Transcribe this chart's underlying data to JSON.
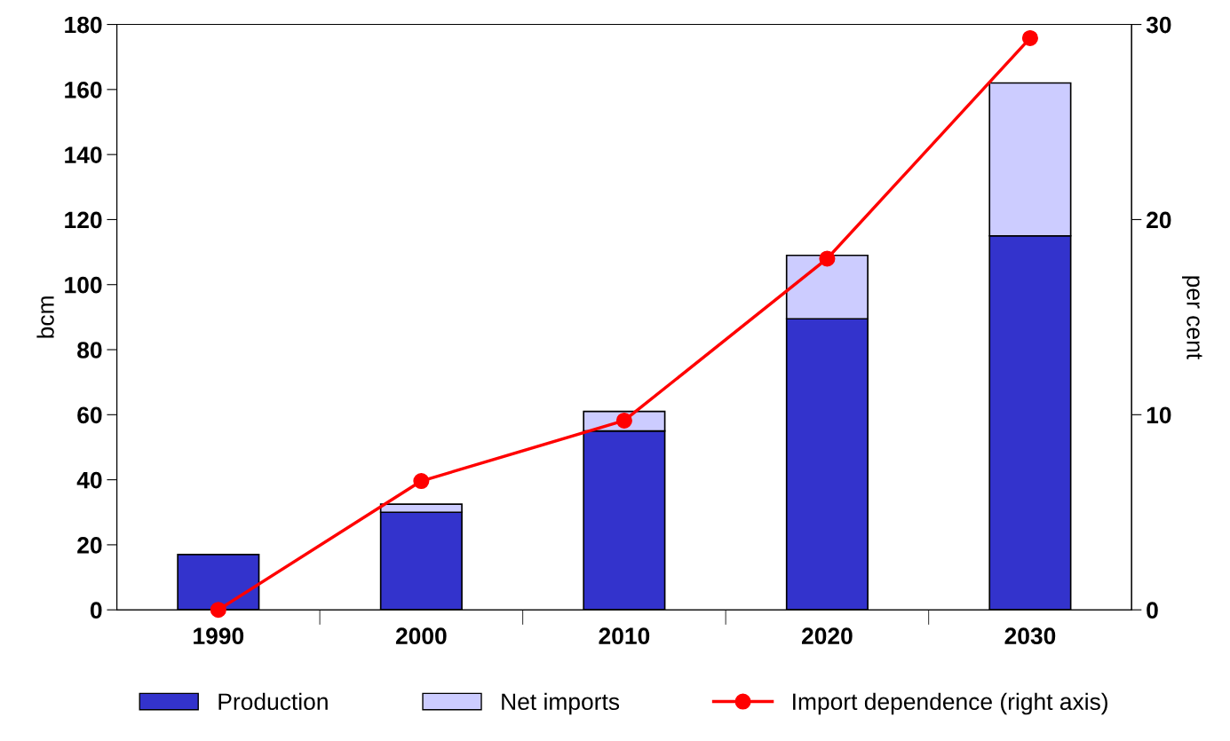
{
  "chart_data": {
    "type": "bar",
    "stacked": true,
    "categories": [
      "1990",
      "2000",
      "2010",
      "2020",
      "2030"
    ],
    "ylabel": "bcm",
    "y2label": "per cent",
    "series": [
      {
        "name": "Production",
        "color": "#3333cc",
        "values": [
          17,
          30,
          55,
          89.5,
          115
        ]
      },
      {
        "name": "Net imports",
        "color": "#ccccff",
        "values": [
          null,
          2.5,
          6,
          19.5,
          47
        ]
      },
      {
        "name": "Import dependence (right axis)",
        "type": "line",
        "axis": "y2",
        "color": "#ff0000",
        "marker": "circle",
        "values": [
          0,
          6.6,
          9.7,
          18,
          29.3
        ]
      }
    ],
    "ylim": [
      0,
      180
    ],
    "yticks": [
      0,
      20,
      40,
      60,
      80,
      100,
      120,
      140,
      160,
      180
    ],
    "y2lim": [
      0,
      30
    ],
    "y2ticks": [
      0,
      10,
      20,
      30
    ],
    "grid": false,
    "legend": "bottom"
  }
}
